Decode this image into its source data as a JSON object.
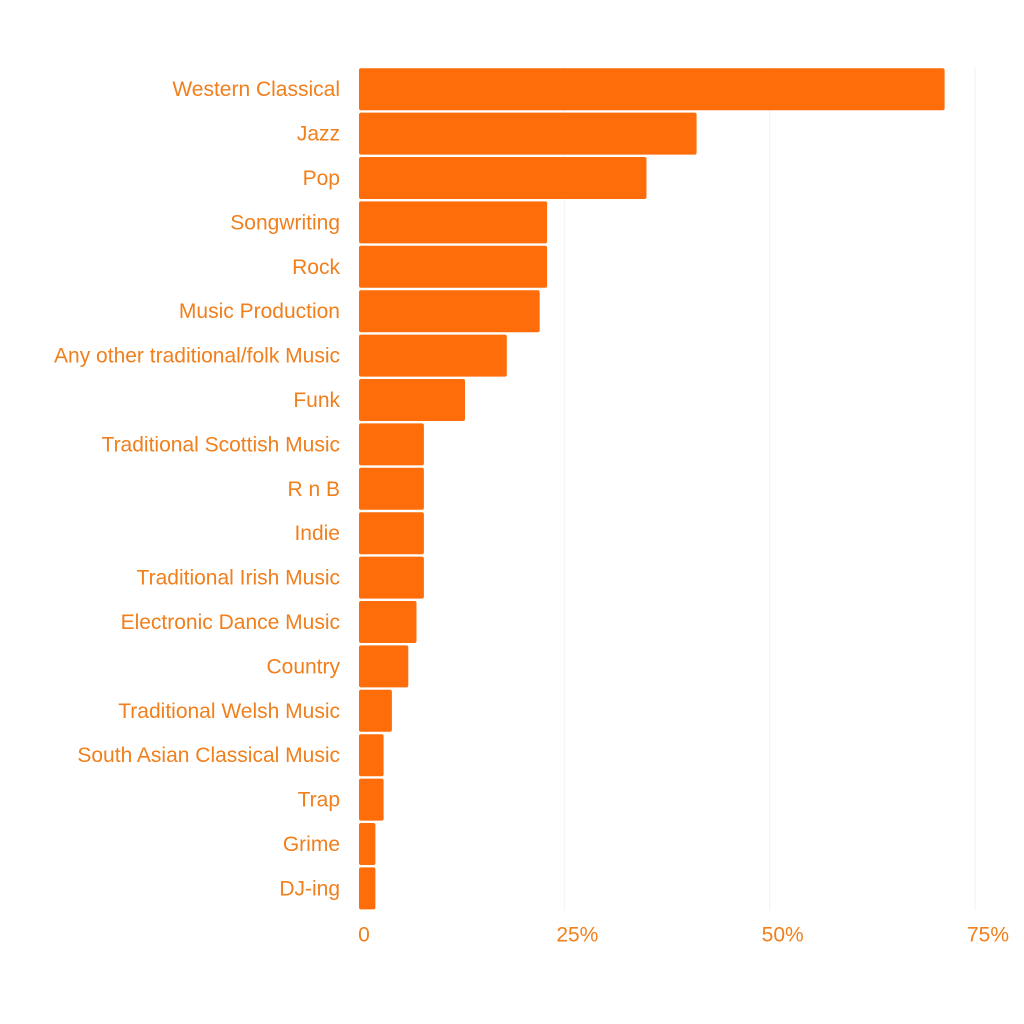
{
  "chart_data": {
    "type": "bar",
    "orientation": "horizontal",
    "categories": [
      "Western Classical",
      "Jazz",
      "Pop",
      "Songwriting",
      "Rock",
      "Music Production",
      "Any other traditional/folk Music",
      "Funk",
      "Traditional Scottish Music",
      "R n B",
      "Indie",
      "Traditional Irish Music",
      "Electronic Dance Music",
      "Country",
      "Traditional Welsh Music",
      "South Asian Classical Music",
      "Trap",
      "Grime",
      "DJ-ing"
    ],
    "values": [
      71.3,
      41.1,
      35.0,
      22.9,
      22.9,
      22.0,
      18.0,
      12.9,
      7.9,
      7.9,
      7.9,
      7.9,
      7.0,
      6.0,
      4.0,
      3.0,
      3.0,
      2.0,
      2.0
    ],
    "value_unit": "%",
    "xlim": [
      0,
      75
    ],
    "x_ticks": [
      0,
      25,
      50,
      75
    ],
    "x_tick_labels": [
      "0",
      "25%",
      "50%",
      "75%"
    ],
    "grid": "vertical-faint",
    "legend": "none",
    "colors": {
      "bar": "#ff6d0a",
      "label": "#f07f1c",
      "grid": "#f2f2f2"
    }
  }
}
